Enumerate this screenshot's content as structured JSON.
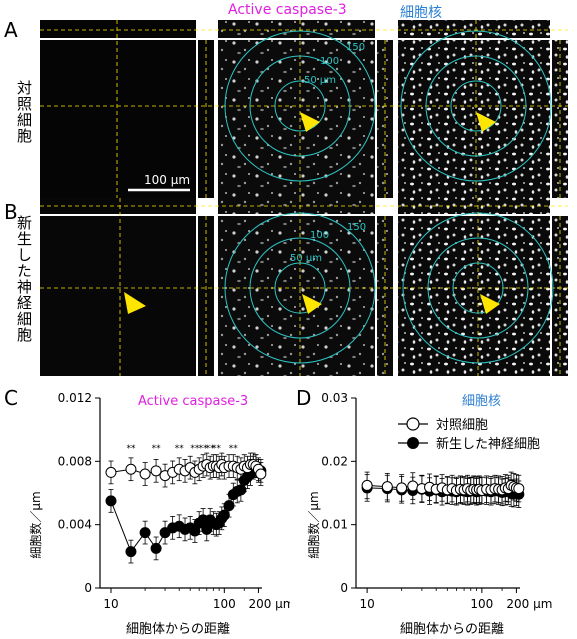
{
  "colors": {
    "magenta": "#e020e0",
    "blue": "#2a7fd4",
    "cyan": "#2ec4c4",
    "yellow": "#ffe600",
    "micro_bg": "#0b0b0b"
  },
  "panel_letters": [
    "A",
    "B",
    "C",
    "D"
  ],
  "headers": {
    "caspase": "Active caspase-3",
    "nucleus": "細胞核"
  },
  "row_labels": [
    "対照細胞",
    "新生した神経細胞"
  ],
  "rings": [
    "50 µm",
    "100",
    "150"
  ],
  "scale_bar": "100 µm",
  "chart_data": [
    {
      "type": "scatter",
      "title": "Active caspase-3",
      "xlabel": "細胞体からの距離",
      "ylabel": "細胞数／µm",
      "x_scale": "log",
      "xlim": [
        8,
        215
      ],
      "xticks": [
        "10",
        "100",
        "200 µm"
      ],
      "xtick_values": [
        10,
        100,
        200
      ],
      "ylim": [
        0,
        0.012
      ],
      "yticks": [
        "0",
        "0.004",
        "0.008",
        "0.012"
      ],
      "ytick_values": [
        0,
        0.004,
        0.008,
        0.012
      ],
      "series": [
        {
          "name": "対照細胞",
          "x": [
            10,
            15,
            20,
            25,
            30,
            35,
            40,
            45,
            50,
            55,
            60,
            65,
            70,
            75,
            80,
            85,
            90,
            95,
            100,
            110,
            120,
            130,
            140,
            150,
            160,
            170,
            180,
            190,
            200,
            210
          ],
          "y": [
            0.0073,
            0.0075,
            0.0072,
            0.0074,
            0.0071,
            0.0073,
            0.0075,
            0.0074,
            0.0076,
            0.0073,
            0.0075,
            0.0077,
            0.0078,
            0.0076,
            0.0077,
            0.0077,
            0.0076,
            0.0078,
            0.0076,
            0.0077,
            0.0077,
            0.0076,
            0.0075,
            0.0077,
            0.0076,
            0.0078,
            0.0078,
            0.0077,
            0.0075,
            0.0072
          ]
        },
        {
          "name": "新生した神経細胞",
          "x": [
            10,
            15,
            20,
            25,
            30,
            35,
            40,
            45,
            50,
            55,
            60,
            65,
            70,
            75,
            80,
            85,
            90,
            95,
            100,
            110,
            120,
            130,
            140,
            150,
            160,
            170,
            180,
            190,
            200,
            210
          ],
          "y": [
            0.0055,
            0.0023,
            0.0035,
            0.0025,
            0.0035,
            0.0038,
            0.0039,
            0.0037,
            0.0038,
            0.0036,
            0.0041,
            0.0043,
            0.0037,
            0.0043,
            0.0041,
            0.004,
            0.0041,
            0.0044,
            0.0046,
            0.0052,
            0.0059,
            0.0061,
            0.0062,
            0.0068,
            0.007,
            0.0072,
            0.0076,
            0.0077,
            0.0074,
            0.0074
          ]
        }
      ],
      "annotations": [
        "**",
        "**",
        "**",
        "**",
        "**",
        "**",
        "**",
        "**"
      ]
    },
    {
      "type": "scatter",
      "title": "細胞核",
      "xlabel": "細胞体からの距離",
      "ylabel": "細胞数／µm",
      "x_scale": "log",
      "xlim": [
        8,
        215
      ],
      "xticks": [
        "10",
        "100",
        "200 µm"
      ],
      "xtick_values": [
        10,
        100,
        200
      ],
      "ylim": [
        0,
        0.03
      ],
      "yticks": [
        "0",
        "0.01",
        "0.02",
        "0.03"
      ],
      "ytick_values": [
        0,
        0.01,
        0.02,
        0.03
      ],
      "legend": "top-right",
      "series": [
        {
          "name": "対照細胞",
          "x": [
            10,
            15,
            20,
            25,
            30,
            35,
            40,
            45,
            50,
            55,
            60,
            65,
            70,
            75,
            80,
            85,
            90,
            95,
            100,
            110,
            120,
            130,
            140,
            150,
            160,
            170,
            180,
            190,
            200,
            210
          ],
          "y": [
            0.0162,
            0.016,
            0.0158,
            0.0161,
            0.0157,
            0.0159,
            0.0156,
            0.0158,
            0.0155,
            0.0157,
            0.0154,
            0.0156,
            0.0155,
            0.0157,
            0.0154,
            0.0156,
            0.0155,
            0.0156,
            0.0154,
            0.0156,
            0.0155,
            0.0157,
            0.0156,
            0.0155,
            0.0158,
            0.0157,
            0.0162,
            0.016,
            0.0158,
            0.0157
          ]
        },
        {
          "name": "新生した神経細胞",
          "x": [
            10,
            15,
            20,
            25,
            30,
            35,
            40,
            45,
            50,
            55,
            60,
            65,
            70,
            75,
            80,
            85,
            90,
            95,
            100,
            110,
            120,
            130,
            140,
            150,
            160,
            170,
            180,
            190,
            200,
            210
          ],
          "y": [
            0.0158,
            0.0157,
            0.0155,
            0.0154,
            0.0156,
            0.0153,
            0.0155,
            0.0152,
            0.0154,
            0.0153,
            0.0152,
            0.0154,
            0.0153,
            0.0152,
            0.0153,
            0.0154,
            0.0152,
            0.0153,
            0.0154,
            0.0153,
            0.0152,
            0.0154,
            0.0153,
            0.0151,
            0.0152,
            0.0153,
            0.015,
            0.0149,
            0.0151,
            0.0148
          ]
        }
      ]
    }
  ]
}
